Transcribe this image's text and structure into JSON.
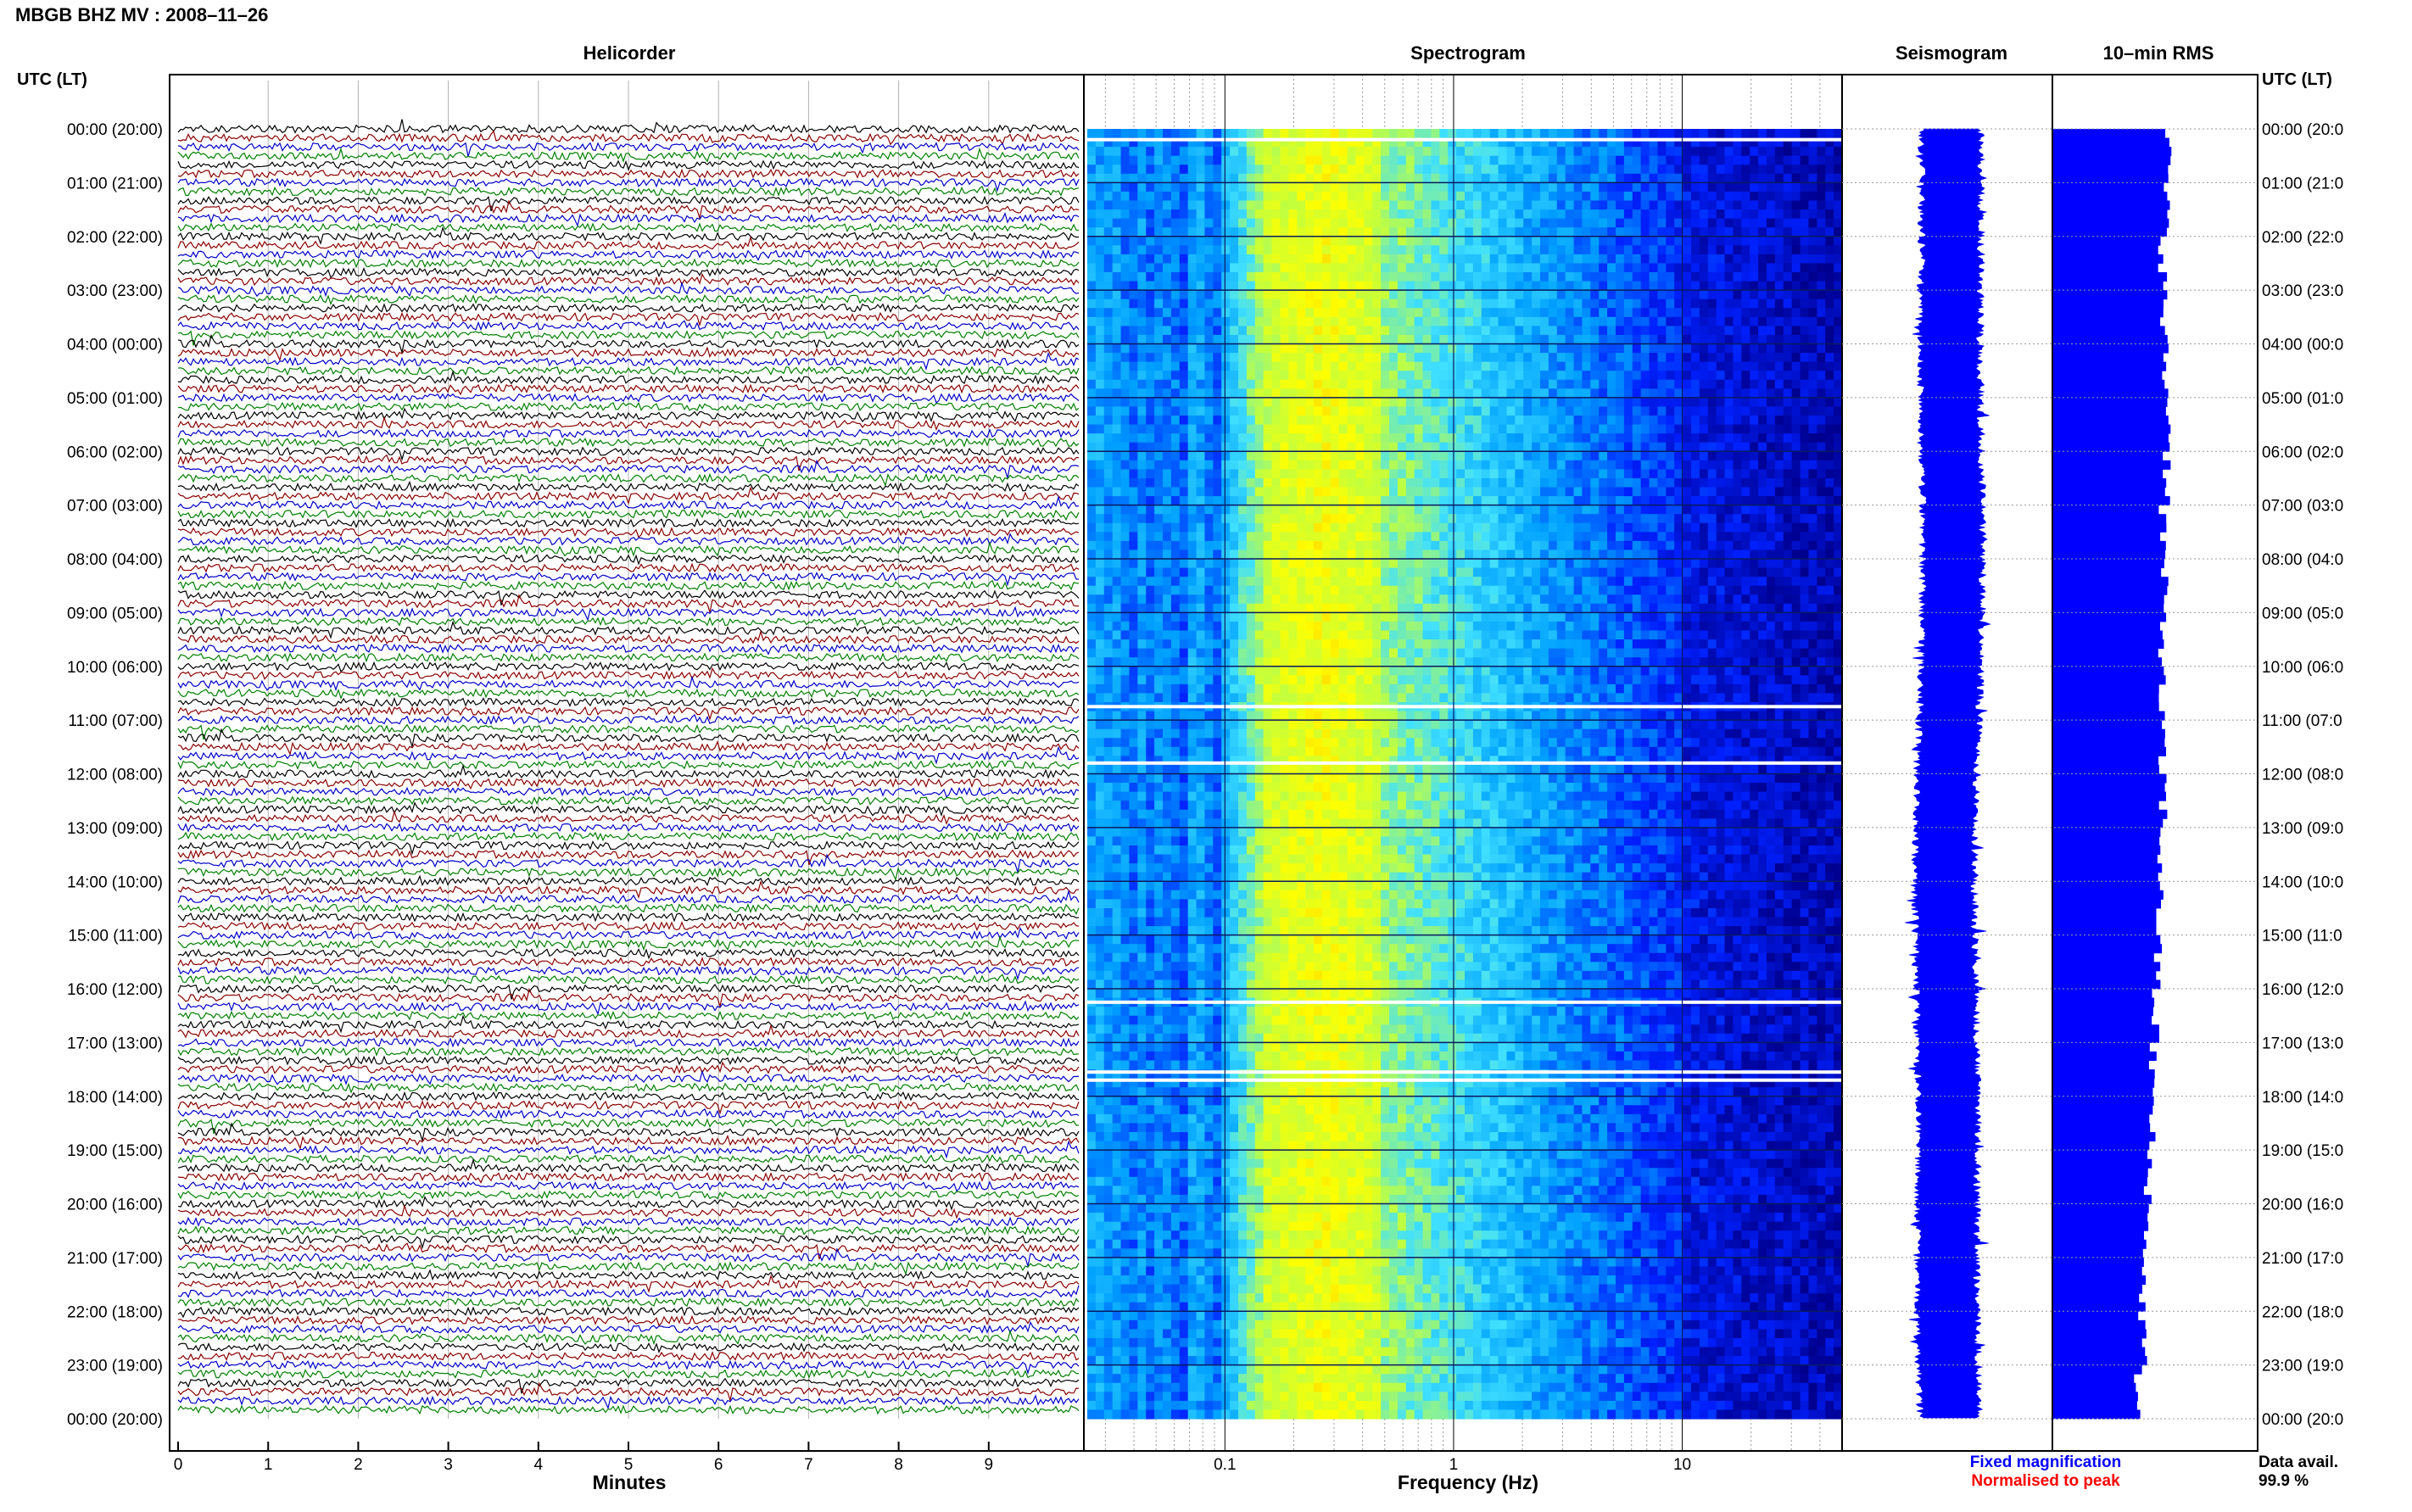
{
  "header": {
    "station_title": "MBGB BHZ MV : 2008–11–26",
    "utc_label_left": "UTC (LT)",
    "utc_label_right": "UTC (LT)"
  },
  "panels": {
    "helicorder_title": "Helicorder",
    "spectrogram_title": "Spectrogram",
    "seismogram_title": "Seismogram",
    "rms_title": "10–min RMS"
  },
  "axes": {
    "minutes_label": "Minutes",
    "frequency_label": "Frequency (Hz)"
  },
  "legend": {
    "fixed_magnification": "Fixed magnification",
    "normalised_to_peak": "Normalised to peak",
    "fixed_color": "#0000ff",
    "normalised_color": "#ff0000"
  },
  "data_availability": {
    "label": "Data avail.",
    "value": "99.9 %"
  },
  "colors": {
    "trace_cycle": [
      "#000000",
      "#8b0000",
      "#0000c8",
      "#008000"
    ],
    "rms_fill": "#0000ff",
    "seismogram": "#0000ff"
  },
  "chart_data": [
    {
      "type": "line",
      "name": "helicorder",
      "xlabel": "Minutes",
      "x_ticks": [
        0,
        1,
        2,
        3,
        4,
        5,
        6,
        7,
        8,
        9
      ],
      "xlim": [
        0,
        10
      ],
      "hours_utc": [
        "00:00",
        "01:00",
        "02:00",
        "03:00",
        "04:00",
        "05:00",
        "06:00",
        "07:00",
        "08:00",
        "09:00",
        "10:00",
        "11:00",
        "12:00",
        "13:00",
        "14:00",
        "15:00",
        "16:00",
        "17:00",
        "18:00",
        "19:00",
        "20:00",
        "21:00",
        "22:00",
        "23:00",
        "00:00"
      ],
      "hours_lt_left": [
        "(20:00)",
        "(21:00)",
        "(22:00)",
        "(23:00)",
        "(00:00)",
        "(01:00)",
        "(02:00)",
        "(03:00)",
        "(04:00)",
        "(05:00)",
        "(06:00)",
        "(07:00)",
        "(08:00)",
        "(09:00)",
        "(10:00)",
        "(11:00)",
        "(12:00)",
        "(13:00)",
        "(14:00)",
        "(15:00)",
        "(16:00)",
        "(17:00)",
        "(18:00)",
        "(19:00)",
        "(20:00)"
      ],
      "hours_lt_right": [
        "(20:0",
        "(21:0",
        "(22:0",
        "(23:0",
        "(00:0",
        "(01:0",
        "(02:0",
        "(03:0",
        "(04:0",
        "(05:0",
        "(06:0",
        "(07:0",
        "(08:0",
        "(09:0",
        "(10:0",
        "(11:0",
        "(12:0",
        "(13:0",
        "(14:0",
        "(15:0",
        "(16:0",
        "(17:0",
        "(18:0",
        "(19:0",
        "(20:0"
      ],
      "traces_per_hour": 6,
      "trace_minutes": 10
    },
    {
      "type": "heatmap",
      "name": "spectrogram",
      "xlabel": "Frequency (Hz)",
      "x_scale": "log",
      "xlim": [
        0.025,
        50
      ],
      "x_tick_labels": [
        {
          "value": 0.1,
          "label": "0.1"
        },
        {
          "value": 1,
          "label": "1"
        },
        {
          "value": 10,
          "label": "10"
        }
      ],
      "peak_band_hz": [
        0.15,
        0.5
      ],
      "colormap": [
        "#00008f",
        "#0020ff",
        "#00a0ff",
        "#40e0ff",
        "#c0ff40",
        "#ffff00",
        "#ff9000"
      ],
      "gaps_hours": [
        0.2,
        10.75,
        11.8,
        16.25,
        17.55,
        17.7
      ]
    },
    {
      "type": "line",
      "name": "seismogram",
      "description_axis": "time_hours_0_to_24",
      "half_width_fraction": 0.035
    },
    {
      "type": "bar",
      "name": "rms_10min",
      "orientation": "horizontal",
      "xlim": [
        0,
        1
      ],
      "hourly_level": [
        0.56,
        0.55,
        0.54,
        0.54,
        0.55,
        0.57,
        0.56,
        0.54,
        0.54,
        0.54,
        0.53,
        0.53,
        0.54,
        0.53,
        0.52,
        0.51,
        0.5,
        0.49,
        0.48,
        0.47,
        0.46,
        0.44,
        0.44,
        0.42
      ]
    }
  ]
}
